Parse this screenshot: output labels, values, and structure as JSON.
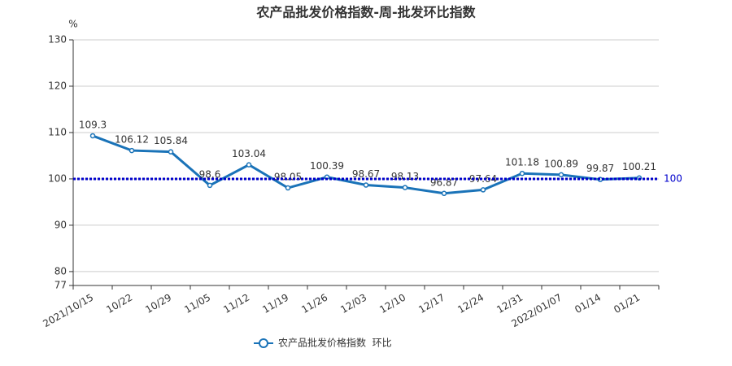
{
  "chart_data": {
    "type": "line",
    "title": "农产品批发价格指数-周-批发环比指数",
    "y_label": "%",
    "categories": [
      "2021/10/15",
      "10/22",
      "10/29",
      "11/05",
      "11/12",
      "11/19",
      "11/26",
      "12/03",
      "12/10",
      "12/17",
      "12/24",
      "12/31",
      "2022/01/07",
      "01/14",
      "01/21"
    ],
    "series": [
      {
        "name": "农产品批发价格指数  环比",
        "color": "#1a73b8",
        "values": [
          109.3,
          106.12,
          105.84,
          98.6,
          103.04,
          98.05,
          100.39,
          98.67,
          98.13,
          96.87,
          97.64,
          101.18,
          100.89,
          99.87,
          100.21
        ]
      }
    ],
    "ylim": [
      77,
      130
    ],
    "yticks": [
      77,
      80,
      90,
      100,
      110,
      120,
      130
    ],
    "grid": true,
    "mark_line": 100,
    "mark_line_color": "#0000cc",
    "legend": "bottom"
  }
}
